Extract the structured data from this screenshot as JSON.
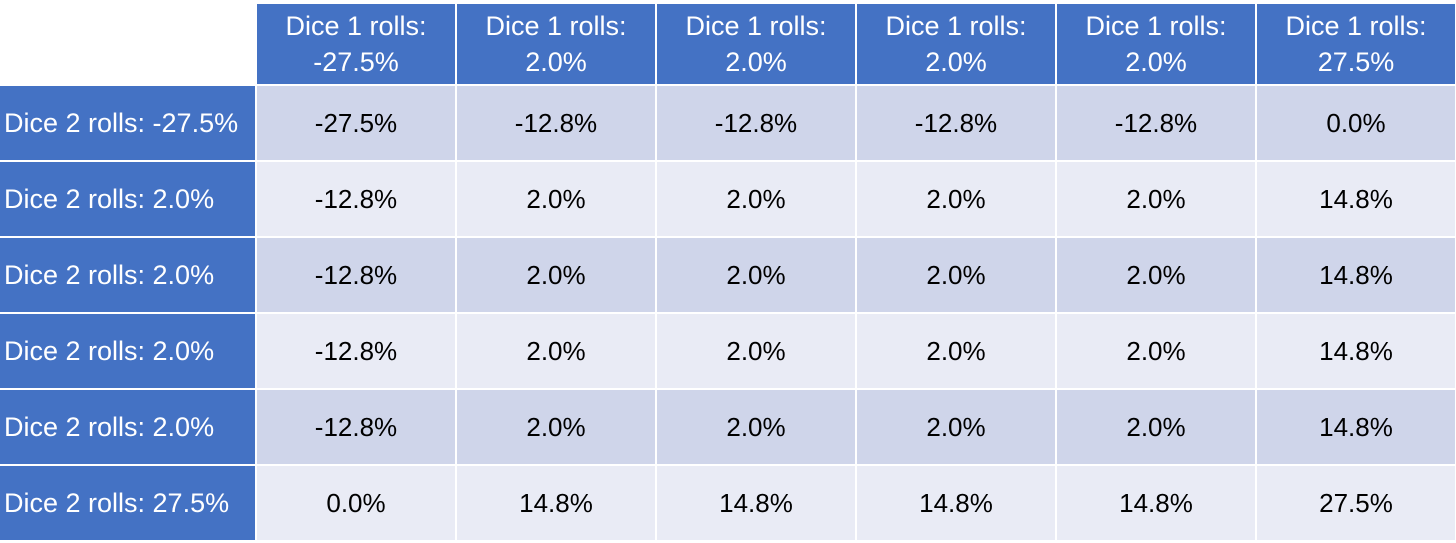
{
  "table": {
    "column_headers": [
      {
        "line1": "Dice 1 rolls:",
        "line2": "-27.5%"
      },
      {
        "line1": "Dice 1 rolls:",
        "line2": "2.0%"
      },
      {
        "line1": "Dice 1 rolls:",
        "line2": "2.0%"
      },
      {
        "line1": "Dice 1 rolls:",
        "line2": "2.0%"
      },
      {
        "line1": "Dice 1 rolls:",
        "line2": "2.0%"
      },
      {
        "line1": "Dice 1 rolls:",
        "line2": "27.5%"
      }
    ],
    "rows": [
      {
        "label": "Dice 2 rolls: -27.5%",
        "cells": [
          "-27.5%",
          "-12.8%",
          "-12.8%",
          "-12.8%",
          "-12.8%",
          "0.0%"
        ]
      },
      {
        "label": "Dice 2 rolls: 2.0%",
        "cells": [
          "-12.8%",
          "2.0%",
          "2.0%",
          "2.0%",
          "2.0%",
          "14.8%"
        ]
      },
      {
        "label": "Dice 2 rolls: 2.0%",
        "cells": [
          "-12.8%",
          "2.0%",
          "2.0%",
          "2.0%",
          "2.0%",
          "14.8%"
        ]
      },
      {
        "label": "Dice 2 rolls: 2.0%",
        "cells": [
          "-12.8%",
          "2.0%",
          "2.0%",
          "2.0%",
          "2.0%",
          "14.8%"
        ]
      },
      {
        "label": "Dice 2 rolls: 2.0%",
        "cells": [
          "-12.8%",
          "2.0%",
          "2.0%",
          "2.0%",
          "2.0%",
          "14.8%"
        ]
      },
      {
        "label": "Dice 2 rolls: 27.5%",
        "cells": [
          "0.0%",
          "14.8%",
          "14.8%",
          "14.8%",
          "14.8%",
          "27.5%"
        ]
      }
    ]
  },
  "colors": {
    "header_bg": "#4472c4",
    "header_text": "#ffffff",
    "band_dark": "#cfd5ea",
    "band_light": "#e9ebf5"
  }
}
